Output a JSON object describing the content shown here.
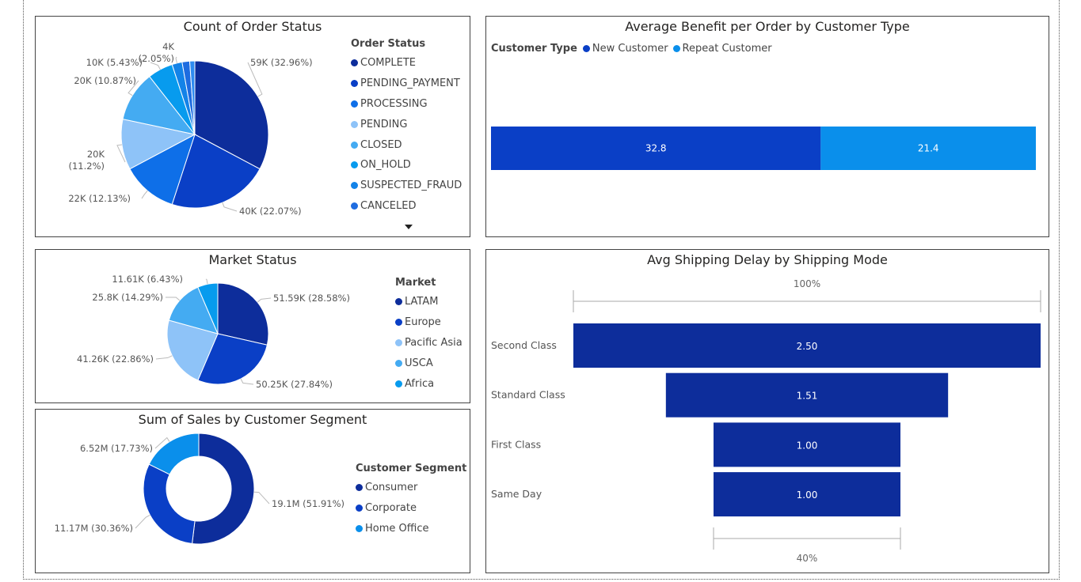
{
  "chart_data": [
    {
      "id": "order_status",
      "type": "pie",
      "title": "Count of Order Status",
      "legend_title": "Order Status",
      "legend_position": "right",
      "slices": [
        {
          "name": "COMPLETE",
          "value": 59000,
          "label": "59K (32.96%)",
          "color": "#0D2D9B"
        },
        {
          "name": "PENDING_PAYMENT",
          "value": 40000,
          "label": "40K (22.07%)",
          "color": "#0A3FC6"
        },
        {
          "name": "PROCESSING",
          "value": 22000,
          "label": "22K (12.13%)",
          "color": "#0E6FE8"
        },
        {
          "name": "PENDING",
          "value": 20000,
          "label": "20K (11.2%)",
          "color": "#8EC3F8"
        },
        {
          "name": "CLOSED",
          "value": 20000,
          "label": "20K (10.87%)",
          "color": "#44ABF2"
        },
        {
          "name": "ON_HOLD",
          "value": 10000,
          "label": "10K (5.43%)",
          "color": "#079BEE"
        },
        {
          "name": "SUSPECTED_FRAUD",
          "value": 4000,
          "label": "4K (2.05%)",
          "color": "#1383E8"
        },
        {
          "name": "CANCELED",
          "value": 3000,
          "label": "",
          "color": "#1E6CE0"
        },
        {
          "name": "",
          "value": 2000,
          "label": "",
          "color": "#2E8BF0"
        }
      ]
    },
    {
      "id": "benefit",
      "type": "bar",
      "stacked": true,
      "orientation": "horizontal",
      "title": "Average Benefit per Order by Customer Type",
      "legend_title": "Customer Type",
      "legend_position": "top-left",
      "series": [
        {
          "name": "New Customer",
          "values": [
            32.8
          ],
          "color": "#0A3FC6"
        },
        {
          "name": "Repeat Customer",
          "values": [
            21.4
          ],
          "color": "#0A8FEB"
        }
      ]
    },
    {
      "id": "market",
      "type": "pie",
      "title": "Market Status",
      "legend_title": "Market",
      "legend_position": "right",
      "slices": [
        {
          "name": "LATAM",
          "value": 51.59,
          "label": "51.59K (28.58%)",
          "color": "#0D2D9B"
        },
        {
          "name": "Europe",
          "value": 50.25,
          "label": "50.25K (27.84%)",
          "color": "#0A3FC6"
        },
        {
          "name": "Pacific Asia",
          "value": 41.26,
          "label": "41.26K (22.86%)",
          "color": "#8EC3F8"
        },
        {
          "name": "USCA",
          "value": 25.8,
          "label": "25.8K (14.29%)",
          "color": "#44ABF2"
        },
        {
          "name": "Africa",
          "value": 11.61,
          "label": "11.61K (6.43%)",
          "color": "#079BEE"
        }
      ]
    },
    {
      "id": "segment",
      "type": "donut",
      "title": "Sum of Sales by Customer Segment",
      "legend_title": "Customer Segment",
      "legend_position": "right",
      "slices": [
        {
          "name": "Consumer",
          "value": 19.1,
          "label": "19.1M (51.91%)",
          "color": "#0D2D9B"
        },
        {
          "name": "Corporate",
          "value": 11.17,
          "label": "11.17M (30.36%)",
          "color": "#0A3FC6"
        },
        {
          "name": "Home Office",
          "value": 6.52,
          "label": "6.52M (17.73%)",
          "color": "#0A8FEB"
        }
      ]
    },
    {
      "id": "shipping",
      "type": "funnel",
      "title": "Avg Shipping Delay by Shipping Mode",
      "top_percent": "100%",
      "bottom_percent": "40%",
      "color": "#0D2D9B",
      "categories": [
        "Second Class",
        "Standard Class",
        "First Class",
        "Same Day"
      ],
      "values": [
        2.5,
        1.51,
        1.0,
        1.0
      ],
      "labels": [
        "2.50",
        "1.51",
        "1.00",
        "1.00"
      ]
    }
  ]
}
